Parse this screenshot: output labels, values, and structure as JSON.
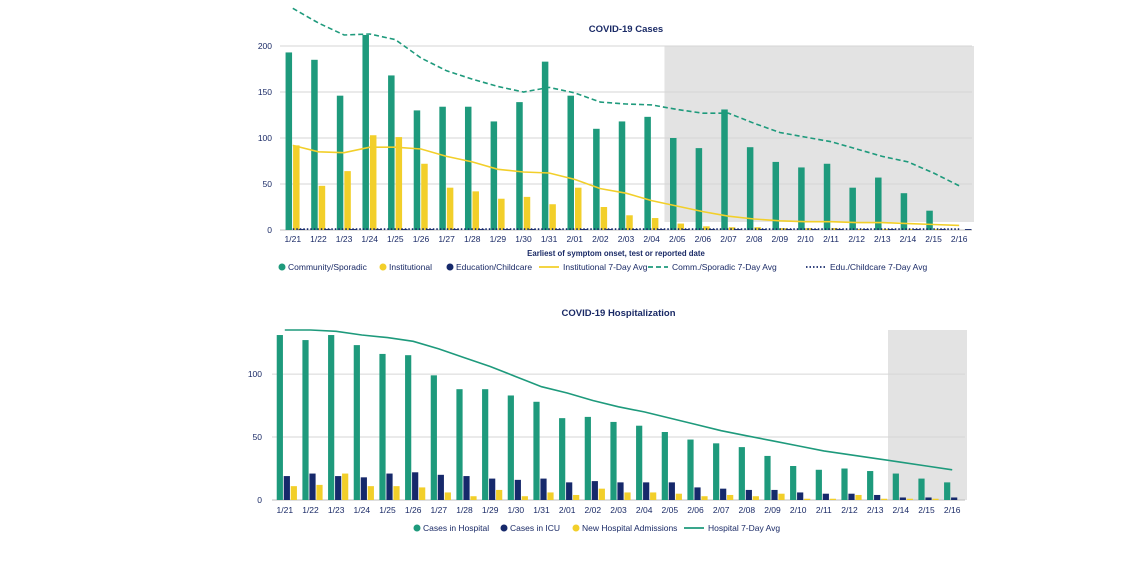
{
  "colors": {
    "community": "#1e9a7c",
    "institutional": "#f2cf2a",
    "education": "#16296b",
    "grid": "#d6d6d6",
    "shade": "#e3e3e3",
    "text": "#1a2a66"
  },
  "chart_data": [
    {
      "type": "bar",
      "title": "COVID-19 Cases",
      "xlabel": "Earliest of symptom onset, test or reported date",
      "ylabel": "",
      "ylim": [
        0,
        200
      ],
      "yticks": [
        0,
        50,
        100,
        150,
        200
      ],
      "categories": [
        "1/21",
        "1/22",
        "1/23",
        "1/24",
        "1/25",
        "1/26",
        "1/27",
        "1/28",
        "1/29",
        "1/30",
        "1/31",
        "2/01",
        "2/02",
        "2/03",
        "2/04",
        "2/05",
        "2/06",
        "2/07",
        "2/08",
        "2/09",
        "2/10",
        "2/11",
        "2/12",
        "2/13",
        "2/14",
        "2/15",
        "2/16"
      ],
      "shaded_from": "2/05",
      "series": [
        {
          "name": "Community/Sporadic",
          "kind": "bar",
          "color": "#1e9a7c",
          "values": [
            193,
            185,
            146,
            212,
            168,
            130,
            134,
            134,
            118,
            139,
            183,
            146,
            110,
            118,
            123,
            100,
            89,
            131,
            90,
            74,
            68,
            72,
            46,
            57,
            40,
            21,
            0
          ]
        },
        {
          "name": "Institutional",
          "kind": "bar",
          "color": "#f2cf2a",
          "values": [
            92,
            48,
            64,
            103,
            101,
            72,
            46,
            42,
            34,
            36,
            28,
            46,
            25,
            16,
            13,
            7,
            4,
            3,
            3,
            2,
            2,
            2,
            1,
            1,
            1,
            1,
            0
          ]
        },
        {
          "name": "Education/Childcare",
          "kind": "bar",
          "color": "#16296b",
          "values": [
            1,
            1,
            1,
            1,
            1,
            1,
            1,
            1,
            1,
            1,
            1,
            1,
            1,
            1,
            1,
            1,
            1,
            1,
            1,
            1,
            1,
            1,
            1,
            1,
            1,
            1,
            1
          ]
        },
        {
          "name": "Institutional 7-Day Avg",
          "kind": "line",
          "color": "#f2cf2a",
          "style": "solid",
          "values": [
            92,
            85,
            84,
            90,
            90,
            88,
            80,
            74,
            66,
            63,
            62,
            55,
            45,
            40,
            32,
            26,
            20,
            15,
            12,
            10,
            9,
            9,
            8,
            8,
            7,
            6,
            5
          ]
        },
        {
          "name": "Comm./Sporadic 7-Day Avg",
          "kind": "line",
          "color": "#1e9a7c",
          "style": "dashed",
          "values": [
            241,
            225,
            212,
            213,
            207,
            187,
            173,
            164,
            156,
            150,
            155,
            149,
            139,
            137,
            136,
            131,
            127,
            127,
            116,
            106,
            101,
            96,
            88,
            80,
            74,
            62,
            48
          ]
        },
        {
          "name": "Edu./Childcare 7-Day Avg",
          "kind": "line",
          "color": "#16296b",
          "style": "dotted",
          "values": [
            1,
            1,
            1,
            1,
            1,
            1,
            1,
            1,
            1,
            1,
            1,
            1,
            1,
            1,
            1,
            1,
            1,
            1,
            1,
            1,
            1,
            1,
            1,
            1,
            1,
            1,
            1
          ]
        }
      ],
      "legend_position": "bottom"
    },
    {
      "type": "bar",
      "title": "COVID-19 Hospitalization",
      "xlabel": "",
      "ylabel": "",
      "ylim": [
        0,
        135
      ],
      "yticks": [
        0,
        50,
        100
      ],
      "categories": [
        "1/21",
        "1/22",
        "1/23",
        "1/24",
        "1/25",
        "1/26",
        "1/27",
        "1/28",
        "1/29",
        "1/30",
        "1/31",
        "2/01",
        "2/02",
        "2/03",
        "2/04",
        "2/05",
        "2/06",
        "2/07",
        "2/08",
        "2/09",
        "2/10",
        "2/11",
        "2/12",
        "2/13",
        "2/14",
        "2/15",
        "2/16"
      ],
      "shaded_from": "2/14",
      "series": [
        {
          "name": "Cases in Hospital",
          "kind": "bar",
          "color": "#1e9a7c",
          "values": [
            131,
            127,
            131,
            123,
            116,
            115,
            99,
            88,
            88,
            83,
            78,
            65,
            66,
            62,
            59,
            54,
            48,
            45,
            42,
            35,
            27,
            24,
            25,
            23,
            21,
            17,
            14
          ]
        },
        {
          "name": "Cases in ICU",
          "kind": "bar",
          "color": "#16296b",
          "values": [
            19,
            21,
            19,
            18,
            21,
            22,
            20,
            19,
            17,
            16,
            17,
            14,
            15,
            14,
            14,
            14,
            10,
            9,
            8,
            8,
            6,
            5,
            5,
            4,
            2,
            2,
            2
          ]
        },
        {
          "name": "New Hospital Admissions",
          "kind": "bar",
          "color": "#f2cf2a",
          "values": [
            11,
            12,
            21,
            11,
            11,
            10,
            6,
            3,
            8,
            3,
            6,
            4,
            9,
            6,
            6,
            5,
            3,
            4,
            3,
            5,
            1,
            1,
            4,
            1,
            1,
            1,
            0
          ]
        },
        {
          "name": "Hospital 7-Day Avg",
          "kind": "line",
          "color": "#1e9a7c",
          "style": "solid",
          "values": [
            135,
            135,
            134,
            131,
            129,
            126,
            120,
            113,
            106,
            98,
            90,
            85,
            79,
            74,
            70,
            65,
            60,
            55,
            51,
            47,
            43,
            39,
            36,
            33,
            30,
            27,
            24
          ]
        }
      ],
      "legend_position": "bottom"
    }
  ]
}
